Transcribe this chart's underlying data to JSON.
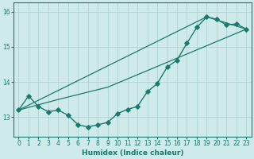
{
  "xlabel": "Humidex (Indice chaleur)",
  "ylabel": "",
  "background_color": "#ceeaea",
  "line_color": "#1a7a6e",
  "grid_color": "#aed4d4",
  "xlim": [
    -0.5,
    23.5
  ],
  "ylim": [
    12.45,
    16.25
  ],
  "yticks": [
    13,
    14,
    15,
    16
  ],
  "xticks": [
    0,
    1,
    2,
    3,
    4,
    5,
    6,
    7,
    8,
    9,
    10,
    11,
    12,
    13,
    14,
    15,
    16,
    17,
    18,
    19,
    20,
    21,
    22,
    23
  ],
  "line1_x": [
    0,
    1,
    2,
    3,
    4,
    5,
    6,
    7,
    8,
    9,
    10,
    11,
    12,
    13,
    14,
    15,
    16,
    17,
    18,
    19,
    20,
    21,
    22,
    23
  ],
  "line1_y": [
    13.2,
    13.6,
    13.3,
    13.15,
    13.2,
    13.05,
    12.78,
    12.72,
    12.78,
    12.85,
    13.1,
    13.22,
    13.3,
    13.72,
    13.95,
    14.42,
    14.62,
    15.1,
    15.55,
    15.85,
    15.78,
    15.62,
    15.65,
    15.5
  ],
  "line2_x": [
    0,
    19,
    23
  ],
  "line2_y": [
    13.2,
    15.85,
    15.5
  ],
  "line3_x": [
    0,
    4,
    9,
    23
  ],
  "line3_y": [
    13.2,
    13.5,
    13.85,
    15.5
  ]
}
